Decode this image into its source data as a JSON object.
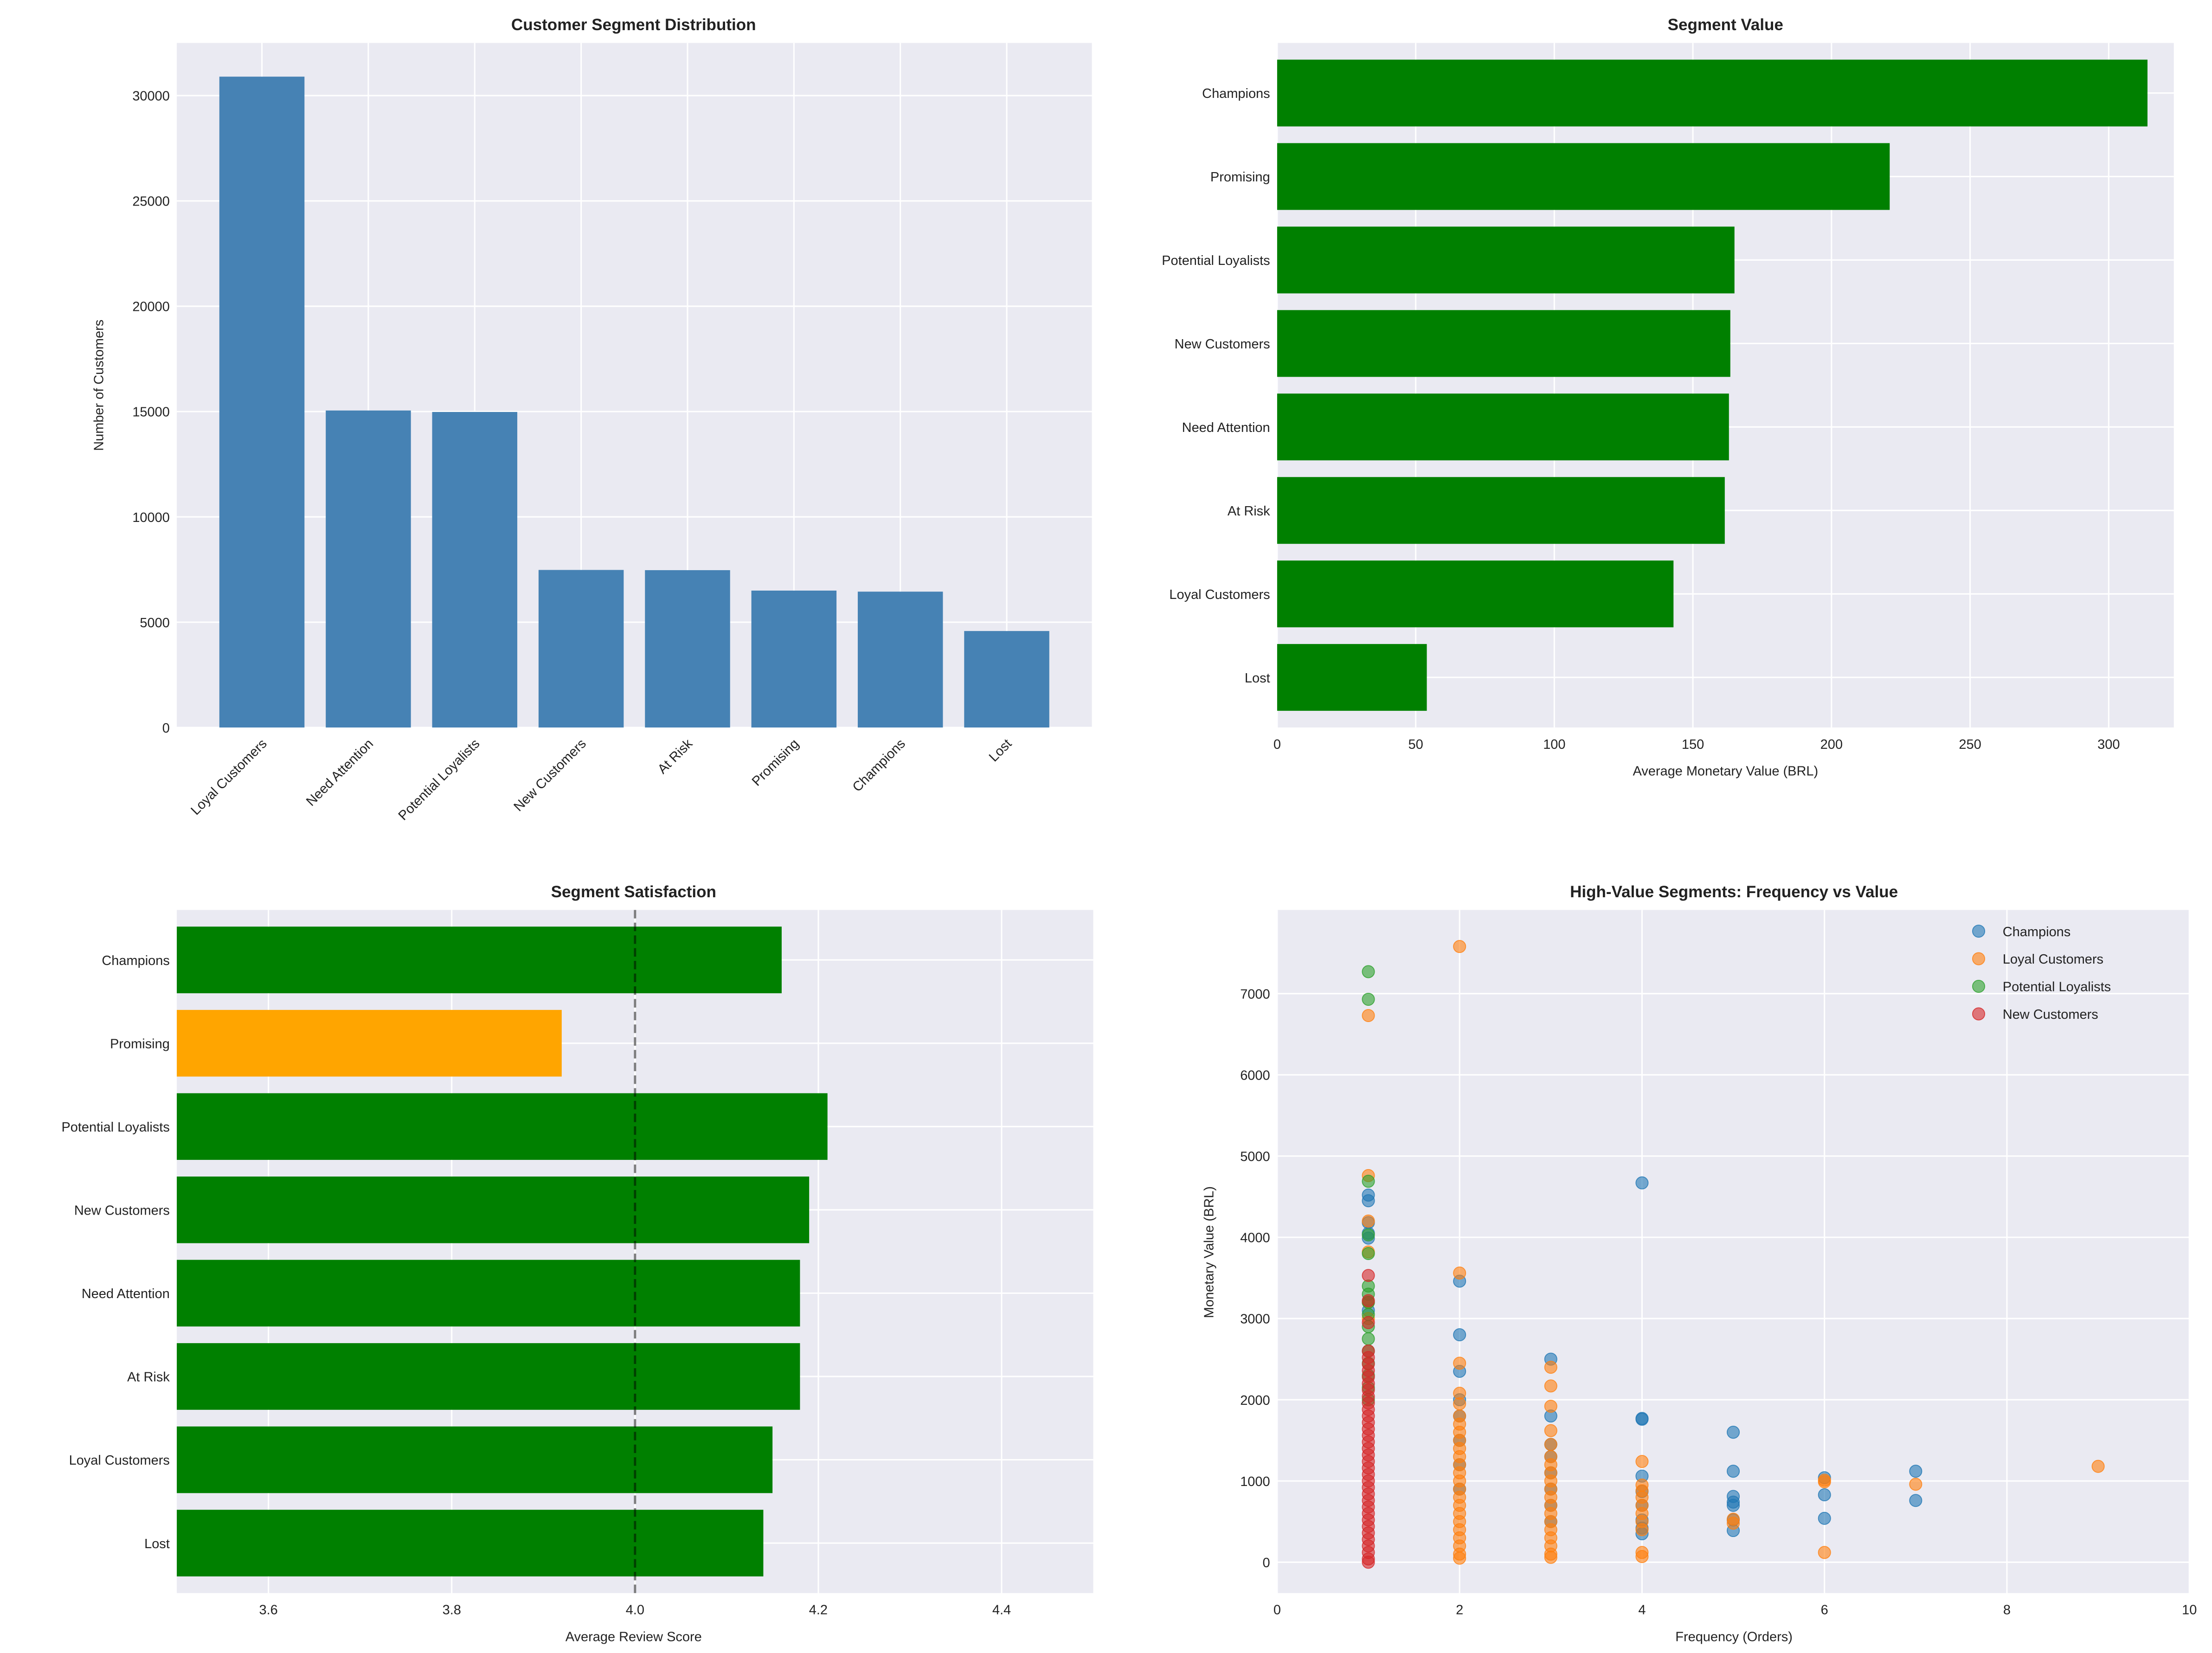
{
  "chart_data": [
    {
      "type": "bar",
      "title": "Customer Segment Distribution",
      "xlabel": "",
      "ylabel": "Number of Customers",
      "categories": [
        "Loyal Customers",
        "Need Attention",
        "Potential Loyalists",
        "New Customers",
        "At Risk",
        "Promising",
        "Champions",
        "Lost"
      ],
      "values": [
        30900,
        15050,
        14980,
        7480,
        7470,
        6500,
        6450,
        4580
      ],
      "ylim": [
        0,
        32500
      ],
      "yticks": [
        0,
        5000,
        10000,
        15000,
        20000,
        25000,
        30000
      ],
      "color": "#4682b4",
      "grid": true
    },
    {
      "type": "bar",
      "orientation": "horizontal",
      "title": "Segment Value",
      "xlabel": "Average Monetary Value (BRL)",
      "ylabel": "",
      "categories": [
        "Champions",
        "Promising",
        "Potential Loyalists",
        "New Customers",
        "Need Attention",
        "At Risk",
        "Loyal Customers",
        "Lost"
      ],
      "values": [
        314,
        221,
        165,
        163.5,
        163,
        161.5,
        143,
        54
      ],
      "xlim": [
        0,
        323.5
      ],
      "xticks": [
        0,
        50,
        100,
        150,
        200,
        250,
        300
      ],
      "color": "#008000",
      "grid": true
    },
    {
      "type": "bar",
      "orientation": "horizontal",
      "title": "Segment Satisfaction",
      "xlabel": "Average Review Score",
      "ylabel": "",
      "categories": [
        "Champions",
        "Promising",
        "Potential Loyalists",
        "New Customers",
        "Need Attention",
        "At Risk",
        "Loyal Customers",
        "Lost"
      ],
      "values": [
        4.16,
        3.92,
        4.21,
        4.19,
        4.18,
        4.18,
        4.15,
        4.14
      ],
      "colors": [
        "#008000",
        "#ffa500",
        "#008000",
        "#008000",
        "#008000",
        "#008000",
        "#008000",
        "#008000"
      ],
      "xlim": [
        3.5,
        4.5
      ],
      "xticks": [
        "3.6",
        "3.8",
        "4.0",
        "4.2",
        "4.4"
      ],
      "reference_line": 4.0,
      "grid": true
    },
    {
      "type": "scatter",
      "title": "High-Value Segments: Frequency vs Value",
      "xlabel": "Frequency (Orders)",
      "ylabel": "Monetary Value (BRL)",
      "xlim": [
        0,
        10
      ],
      "ylim": [
        -380,
        8030
      ],
      "xticks": [
        0,
        2,
        4,
        6,
        8,
        10
      ],
      "yticks": [
        0,
        1000,
        2000,
        3000,
        4000,
        5000,
        6000,
        7000
      ],
      "legend_position": "top-right",
      "grid": true,
      "series": [
        {
          "name": "Potential Loyalists",
          "color": "#2ca02c",
          "points": [
            [
              1,
              7270
            ],
            [
              1,
              6930
            ],
            [
              1,
              4690
            ],
            [
              1,
              4030
            ],
            [
              1,
              3800
            ],
            [
              1,
              3400
            ],
            [
              1,
              3300
            ],
            [
              1,
              3200
            ],
            [
              1,
              3050
            ],
            [
              1,
              2900
            ],
            [
              1,
              2750
            ],
            [
              1,
              2600
            ],
            [
              1,
              2450
            ],
            [
              1,
              2300
            ],
            [
              1,
              2150
            ],
            [
              1,
              2000
            ]
          ]
        },
        {
          "name": "Champions",
          "color": "#1f77b4",
          "points": [
            [
              1,
              4520
            ],
            [
              1,
              4450
            ],
            [
              1,
              4180
            ],
            [
              1,
              4050
            ],
            [
              1,
              3990
            ],
            [
              1,
              3200
            ],
            [
              1,
              3100
            ],
            [
              2,
              3460
            ],
            [
              2,
              2800
            ],
            [
              2,
              2350
            ],
            [
              2,
              2000
            ],
            [
              2,
              1800
            ],
            [
              2,
              1500
            ],
            [
              2,
              1200
            ],
            [
              2,
              900
            ],
            [
              3,
              2500
            ],
            [
              3,
              1800
            ],
            [
              3,
              1450
            ],
            [
              3,
              1300
            ],
            [
              3,
              1100
            ],
            [
              3,
              900
            ],
            [
              3,
              700
            ],
            [
              3,
              500
            ],
            [
              4,
              4670
            ],
            [
              4,
              1770
            ],
            [
              4,
              1760
            ],
            [
              4,
              1060
            ],
            [
              4,
              870
            ],
            [
              4,
              700
            ],
            [
              4,
              520
            ],
            [
              4,
              420
            ],
            [
              4,
              350
            ],
            [
              5,
              1600
            ],
            [
              5,
              1120
            ],
            [
              5,
              810
            ],
            [
              5,
              740
            ],
            [
              5,
              700
            ],
            [
              5,
              520
            ],
            [
              5,
              390
            ],
            [
              6,
              1040
            ],
            [
              6,
              830
            ],
            [
              6,
              540
            ],
            [
              7,
              1120
            ],
            [
              7,
              760
            ]
          ]
        },
        {
          "name": "Loyal Customers",
          "color": "#ff7f0e",
          "points": [
            [
              1,
              6730
            ],
            [
              1,
              4760
            ],
            [
              1,
              4200
            ],
            [
              1,
              3820
            ],
            [
              1,
              3200
            ],
            [
              1,
              3000
            ],
            [
              2,
              7580
            ],
            [
              2,
              3560
            ],
            [
              2,
              2450
            ],
            [
              2,
              2080
            ],
            [
              2,
              1950
            ],
            [
              2,
              1800
            ],
            [
              2,
              1700
            ],
            [
              2,
              1600
            ],
            [
              2,
              1500
            ],
            [
              2,
              1400
            ],
            [
              2,
              1300
            ],
            [
              2,
              1200
            ],
            [
              2,
              1100
            ],
            [
              2,
              1000
            ],
            [
              2,
              900
            ],
            [
              2,
              800
            ],
            [
              2,
              700
            ],
            [
              2,
              600
            ],
            [
              2,
              500
            ],
            [
              2,
              400
            ],
            [
              2,
              300
            ],
            [
              2,
              200
            ],
            [
              2,
              100
            ],
            [
              2,
              50
            ],
            [
              3,
              2400
            ],
            [
              3,
              2170
            ],
            [
              3,
              1920
            ],
            [
              3,
              1620
            ],
            [
              3,
              1450
            ],
            [
              3,
              1300
            ],
            [
              3,
              1200
            ],
            [
              3,
              1100
            ],
            [
              3,
              1000
            ],
            [
              3,
              900
            ],
            [
              3,
              800
            ],
            [
              3,
              700
            ],
            [
              3,
              600
            ],
            [
              3,
              500
            ],
            [
              3,
              400
            ],
            [
              3,
              300
            ],
            [
              3,
              200
            ],
            [
              3,
              100
            ],
            [
              3,
              60
            ],
            [
              4,
              1240
            ],
            [
              4,
              950
            ],
            [
              4,
              880
            ],
            [
              4,
              800
            ],
            [
              4,
              700
            ],
            [
              4,
              600
            ],
            [
              4,
              500
            ],
            [
              4,
              400
            ],
            [
              4,
              120
            ],
            [
              4,
              70
            ],
            [
              5,
              530
            ],
            [
              5,
              480
            ],
            [
              6,
              1010
            ],
            [
              6,
              990
            ],
            [
              6,
              120
            ],
            [
              7,
              960
            ],
            [
              9,
              1180
            ]
          ]
        },
        {
          "name": "New Customers",
          "color": "#d62728",
          "points": [
            [
              1,
              3530
            ],
            [
              1,
              3220
            ],
            [
              1,
              2950
            ],
            [
              1,
              2600
            ],
            [
              1,
              2520
            ],
            [
              1,
              2440
            ],
            [
              1,
              2360
            ],
            [
              1,
              2280
            ],
            [
              1,
              2200
            ],
            [
              1,
              2120
            ],
            [
              1,
              2040
            ],
            [
              1,
              1960
            ],
            [
              1,
              1880
            ],
            [
              1,
              1800
            ],
            [
              1,
              1720
            ],
            [
              1,
              1640
            ],
            [
              1,
              1560
            ],
            [
              1,
              1480
            ],
            [
              1,
              1400
            ],
            [
              1,
              1320
            ],
            [
              1,
              1240
            ],
            [
              1,
              1160
            ],
            [
              1,
              1080
            ],
            [
              1,
              1000
            ],
            [
              1,
              920
            ],
            [
              1,
              840
            ],
            [
              1,
              760
            ],
            [
              1,
              680
            ],
            [
              1,
              600
            ],
            [
              1,
              520
            ],
            [
              1,
              440
            ],
            [
              1,
              360
            ],
            [
              1,
              280
            ],
            [
              1,
              200
            ],
            [
              1,
              120
            ],
            [
              1,
              40
            ],
            [
              1,
              0
            ]
          ]
        }
      ],
      "legend_order": [
        "Champions",
        "Loyal Customers",
        "Potential Loyalists",
        "New Customers"
      ]
    }
  ]
}
